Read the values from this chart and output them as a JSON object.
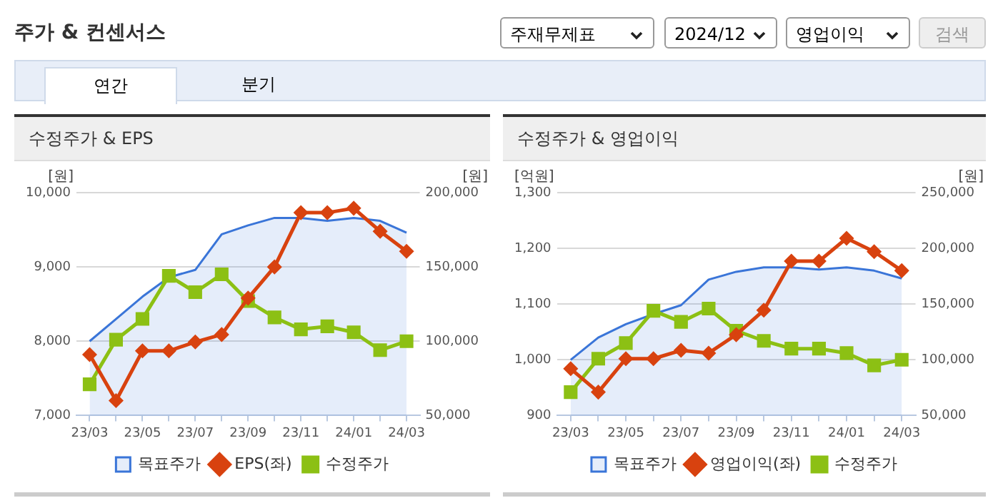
{
  "chart_data": [
    {
      "type": "line",
      "title": "수정주가 & EPS",
      "annotations": [
        "주가 & 컨센서스",
        "주재무제표",
        "2024/12",
        "영업이익",
        "검색",
        "연간",
        "분기"
      ],
      "categories": [
        "23/03",
        null,
        "23/05",
        null,
        "23/07",
        null,
        "23/09",
        null,
        "23/11",
        null,
        "24/01",
        null,
        "24/03"
      ],
      "series": [
        {
          "name": "목표주가",
          "type": "area",
          "axis": "y2",
          "color": "#3a75d8",
          "values": [
            100000,
            115000,
            130000,
            143000,
            148000,
            172000,
            178000,
            183000,
            183000,
            181000,
            183000,
            181000,
            173000
          ]
        },
        {
          "name": "EPS(좌)",
          "type": "line",
          "axis": "y",
          "marker": "diamond",
          "color": "#d8420f",
          "values": [
            7820,
            7200,
            7870,
            7870,
            7990,
            8090,
            8580,
            9000,
            9730,
            9730,
            9790,
            9480,
            9210
          ]
        },
        {
          "name": "수정주가",
          "type": "line",
          "axis": "y2",
          "marker": "square",
          "color": "#8cc014",
          "values": [
            71000,
            101000,
            115000,
            144000,
            133000,
            145000,
            127000,
            116000,
            108000,
            110000,
            106000,
            94000,
            100000
          ]
        }
      ],
      "ylabel": "[원]",
      "y2label": "[원]",
      "ylim": [
        7000,
        10000
      ],
      "yticks": [
        {
          "value": 7000,
          "label": "7,000"
        },
        {
          "value": 8000,
          "label": "8,000"
        },
        {
          "value": 9000,
          "label": "9,000"
        },
        {
          "value": 10000,
          "label": "10,000"
        }
      ],
      "y2lim": [
        50000,
        200000
      ],
      "y2ticks": [
        {
          "value": 50000,
          "label": "50,000"
        },
        {
          "value": 100000,
          "label": "100,000"
        },
        {
          "value": 150000,
          "label": "150,000"
        },
        {
          "value": 200000,
          "label": "200,000"
        }
      ],
      "grid": "y",
      "legend": "bottom"
    },
    {
      "type": "line",
      "title": "수정주가 & 영업이익",
      "categories": [
        "23/03",
        null,
        "23/05",
        null,
        "23/07",
        null,
        "23/09",
        null,
        "23/11",
        null,
        "24/01",
        null,
        "24/03"
      ],
      "series": [
        {
          "name": "목표주가",
          "type": "area",
          "axis": "y2",
          "color": "#3a75d8",
          "values": [
            100000,
            120000,
            132000,
            141000,
            149000,
            172000,
            179000,
            183000,
            183000,
            181000,
            183000,
            180000,
            173000
          ]
        },
        {
          "name": "영업이익(좌)",
          "type": "line",
          "axis": "y",
          "marker": "diamond",
          "color": "#d8420f",
          "values": [
            984,
            942,
            1002,
            1002,
            1017,
            1012,
            1045,
            1089,
            1177,
            1177,
            1218,
            1194,
            1160
          ]
        },
        {
          "name": "수정주가",
          "type": "line",
          "axis": "y2",
          "marker": "square",
          "color": "#8cc014",
          "values": [
            71000,
            101000,
            115000,
            144000,
            134000,
            146000,
            126000,
            117000,
            110000,
            110000,
            106000,
            95000,
            100000
          ]
        }
      ],
      "ylabel": "[억원]",
      "y2label": "[원]",
      "ylim": [
        900,
        1300
      ],
      "yticks": [
        {
          "value": 900,
          "label": "900"
        },
        {
          "value": 1000,
          "label": "1,000"
        },
        {
          "value": 1100,
          "label": "1,100"
        },
        {
          "value": 1200,
          "label": "1,200"
        },
        {
          "value": 1300,
          "label": "1,300"
        }
      ],
      "y2lim": [
        50000,
        250000
      ],
      "y2ticks": [
        {
          "value": 50000,
          "label": "50,000"
        },
        {
          "value": 100000,
          "label": "100,000"
        },
        {
          "value": 150000,
          "label": "150,000"
        },
        {
          "value": 200000,
          "label": "200,000"
        },
        {
          "value": 250000,
          "label": "250,000"
        }
      ],
      "grid": "y",
      "legend": "bottom"
    }
  ]
}
